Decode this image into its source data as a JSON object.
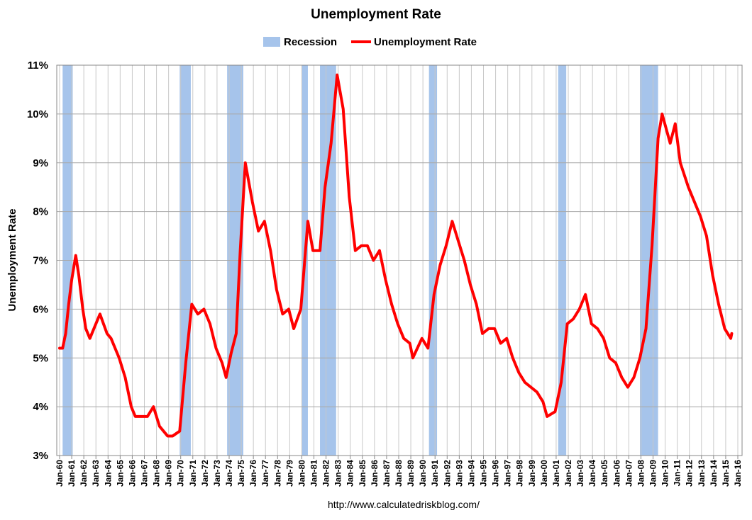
{
  "chart_data": {
    "type": "line",
    "title": "Unemployment Rate",
    "y_label": "Unemployment Rate",
    "source": "http://www.calculatedriskblog.com/",
    "recessions": {
      "name": "Recession",
      "color": "#a6c4eb",
      "periods": [
        [
          "Apr-60",
          "Feb-61"
        ],
        [
          "Dec-69",
          "Nov-70"
        ],
        [
          "Nov-73",
          "Mar-75"
        ],
        [
          "Jan-80",
          "Jul-80"
        ],
        [
          "Jul-81",
          "Nov-82"
        ],
        [
          "Jul-90",
          "Mar-91"
        ],
        [
          "Mar-01",
          "Nov-01"
        ],
        [
          "Dec-07",
          "Jun-09"
        ]
      ]
    },
    "x": [
      "Jan-60",
      "Apr-60",
      "Jul-60",
      "Oct-60",
      "Jan-61",
      "May-61",
      "Aug-61",
      "Dec-61",
      "Mar-62",
      "Jul-62",
      "Jan-63",
      "May-63",
      "Dec-63",
      "Apr-64",
      "Dec-64",
      "Jun-65",
      "Dec-65",
      "Apr-66",
      "Dec-66",
      "Apr-67",
      "Oct-67",
      "Apr-68",
      "Dec-68",
      "May-69",
      "Dec-69",
      "Jun-70",
      "Dec-70",
      "Jun-71",
      "Dec-71",
      "Jun-72",
      "Dec-72",
      "Jun-73",
      "Oct-73",
      "Mar-74",
      "Aug-74",
      "Dec-74",
      "May-75",
      "Dec-75",
      "Jun-76",
      "Dec-76",
      "Jun-77",
      "Dec-77",
      "Jun-78",
      "Dec-78",
      "May-79",
      "Dec-79",
      "Jul-80",
      "Dec-80",
      "Jul-81",
      "Dec-81",
      "Jun-82",
      "Dec-82",
      "Jun-83",
      "Dec-83",
      "Jun-84",
      "Dec-84",
      "Jun-85",
      "Dec-85",
      "Jun-86",
      "Dec-86",
      "Jun-87",
      "Dec-87",
      "Jun-88",
      "Dec-88",
      "Mar-89",
      "Dec-89",
      "Jun-90",
      "Dec-90",
      "Jun-91",
      "Dec-91",
      "Jun-92",
      "Dec-92",
      "Jun-93",
      "Dec-93",
      "Jun-94",
      "Dec-94",
      "Jun-95",
      "Dec-95",
      "Jun-96",
      "Dec-96",
      "Jun-97",
      "Dec-97",
      "Jun-98",
      "Dec-98",
      "Jun-99",
      "Dec-99",
      "Apr-00",
      "Dec-00",
      "Jun-01",
      "Dec-01",
      "Jun-02",
      "Dec-02",
      "Jun-03",
      "Dec-03",
      "Jun-04",
      "Dec-04",
      "Jun-05",
      "Dec-05",
      "Jun-06",
      "Dec-06",
      "Jun-07",
      "Dec-07",
      "Jun-08",
      "Dec-08",
      "Jun-09",
      "Oct-09",
      "Jun-10",
      "Nov-10",
      "Apr-11",
      "Dec-11",
      "Jun-12",
      "Dec-12",
      "Jun-13",
      "Dec-13",
      "Jun-14",
      "Dec-14",
      "Jun-15",
      "Jul-15"
    ],
    "series": [
      {
        "name": "Unemployment Rate",
        "color": "#ff0000",
        "values": [
          5.2,
          5.2,
          5.5,
          6.1,
          6.6,
          7.1,
          6.7,
          6.0,
          5.6,
          5.4,
          5.7,
          5.9,
          5.5,
          5.4,
          5.0,
          4.6,
          4.0,
          3.8,
          3.8,
          3.8,
          4.0,
          3.6,
          3.4,
          3.4,
          3.5,
          4.9,
          6.1,
          5.9,
          6.0,
          5.7,
          5.2,
          4.9,
          4.6,
          5.1,
          5.5,
          7.2,
          9.0,
          8.2,
          7.6,
          7.8,
          7.2,
          6.4,
          5.9,
          6.0,
          5.6,
          6.0,
          7.8,
          7.2,
          7.2,
          8.5,
          9.4,
          10.8,
          10.1,
          8.3,
          7.2,
          7.3,
          7.3,
          7.0,
          7.2,
          6.6,
          6.1,
          5.7,
          5.4,
          5.3,
          5.0,
          5.4,
          5.2,
          6.3,
          6.9,
          7.3,
          7.8,
          7.4,
          7.0,
          6.5,
          6.1,
          5.5,
          5.6,
          5.6,
          5.3,
          5.4,
          5.0,
          4.7,
          4.5,
          4.4,
          4.3,
          4.1,
          3.8,
          3.9,
          4.5,
          5.7,
          5.8,
          6.0,
          6.3,
          5.7,
          5.6,
          5.4,
          5.0,
          4.9,
          4.6,
          4.4,
          4.6,
          5.0,
          5.6,
          7.3,
          9.5,
          10.0,
          9.4,
          9.8,
          9.0,
          8.5,
          8.2,
          7.9,
          7.5,
          6.7,
          6.1,
          5.6,
          5.4,
          5.5
        ]
      }
    ],
    "xlim": [
      "Jan-60",
      "Jan-16"
    ],
    "xticks": [
      "Jan-60",
      "Jan-61",
      "Jan-62",
      "Jan-63",
      "Jan-64",
      "Jan-65",
      "Jan-66",
      "Jan-67",
      "Jan-68",
      "Jan-69",
      "Jan-70",
      "Jan-71",
      "Jan-72",
      "Jan-73",
      "Jan-74",
      "Jan-75",
      "Jan-76",
      "Jan-77",
      "Jan-78",
      "Jan-79",
      "Jan-80",
      "Jan-81",
      "Jan-82",
      "Jan-83",
      "Jan-84",
      "Jan-85",
      "Jan-86",
      "Jan-87",
      "Jan-88",
      "Jan-89",
      "Jan-90",
      "Jan-91",
      "Jan-92",
      "Jan-93",
      "Jan-94",
      "Jan-95",
      "Jan-96",
      "Jan-97",
      "Jan-98",
      "Jan-99",
      "Jan-00",
      "Jan-01",
      "Jan-02",
      "Jan-03",
      "Jan-04",
      "Jan-05",
      "Jan-06",
      "Jan-07",
      "Jan-08",
      "Jan-09",
      "Jan-10",
      "Jan-11",
      "Jan-12",
      "Jan-13",
      "Jan-14",
      "Jan-15",
      "Jan-16"
    ],
    "ylim": [
      3,
      11
    ],
    "yticks": [
      {
        "value": 3,
        "label": "3%"
      },
      {
        "value": 4,
        "label": "4%"
      },
      {
        "value": 5,
        "label": "5%"
      },
      {
        "value": 6,
        "label": "6%"
      },
      {
        "value": 7,
        "label": "7%"
      },
      {
        "value": 8,
        "label": "8%"
      },
      {
        "value": 9,
        "label": "9%"
      },
      {
        "value": 10,
        "label": "10%"
      },
      {
        "value": 11,
        "label": "11%"
      }
    ],
    "grid": true
  }
}
